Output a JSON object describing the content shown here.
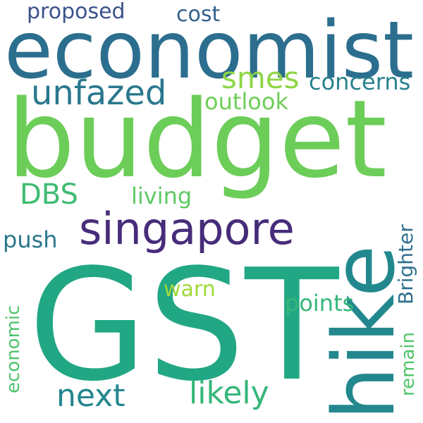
{
  "words": [
    {
      "text": "economist",
      "color": "#2c6e8e"
    },
    {
      "text": "budget",
      "color": "#6ccd59"
    },
    {
      "text": "GST",
      "color": "#22a784"
    },
    {
      "text": "hike",
      "color": "#23888e"
    },
    {
      "text": "singapore",
      "color": "#472c7a"
    },
    {
      "text": "unfazed",
      "color": "#2a788e"
    },
    {
      "text": "smes",
      "color": "#8ed645"
    },
    {
      "text": "concerns",
      "color": "#26828e"
    },
    {
      "text": "outlook",
      "color": "#6ece58"
    },
    {
      "text": "DBS",
      "color": "#3fbc73"
    },
    {
      "text": "living",
      "color": "#5ec962"
    },
    {
      "text": "proposed",
      "color": "#3b528b"
    },
    {
      "text": "cost",
      "color": "#33628d"
    },
    {
      "text": "Brighter",
      "color": "#2e6f8e"
    },
    {
      "text": "push",
      "color": "#2a768e"
    },
    {
      "text": "warn",
      "color": "#a0da39"
    },
    {
      "text": "points",
      "color": "#35b779"
    },
    {
      "text": "economic",
      "color": "#4ec36b"
    },
    {
      "text": "remain",
      "color": "#50c46a"
    },
    {
      "text": "next",
      "color": "#24868e"
    },
    {
      "text": "likely",
      "color": "#34b679"
    }
  ]
}
